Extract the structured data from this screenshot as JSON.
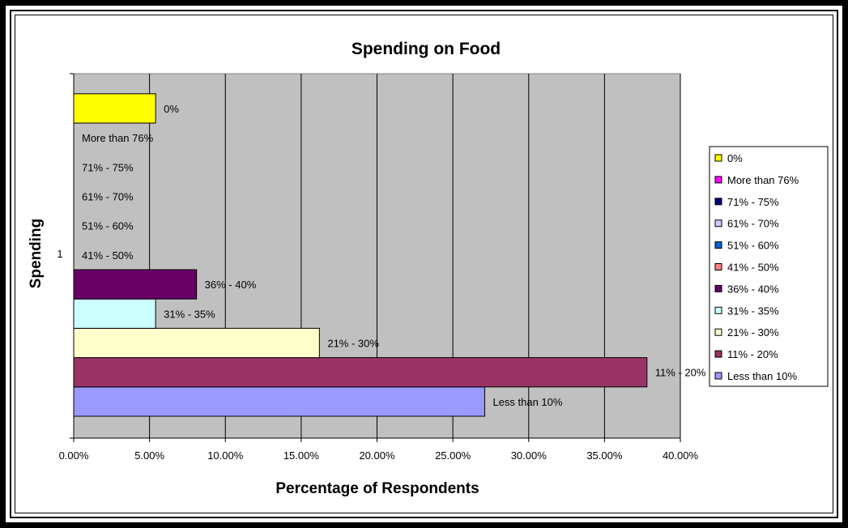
{
  "chart_data": {
    "type": "bar",
    "orientation": "horizontal",
    "title": "Spending on Food",
    "xlabel": "Percentage of Respondents",
    "ylabel": "Spending",
    "category_labels": [
      "1"
    ],
    "xlim": [
      0,
      0.4
    ],
    "x_ticks": [
      "0.00%",
      "5.00%",
      "10.00%",
      "15.00%",
      "20.00%",
      "25.00%",
      "30.00%",
      "35.00%",
      "40.00%"
    ],
    "grid": "vertical",
    "legend_position": "right",
    "plot_background": "#c0c0c0",
    "series": [
      {
        "name": "Less than 10%",
        "value": 0.271,
        "color": "#9999ff"
      },
      {
        "name": "11% - 20%",
        "value": 0.378,
        "color": "#993366"
      },
      {
        "name": "21% - 30%",
        "value": 0.162,
        "color": "#ffffcc"
      },
      {
        "name": "31% - 35%",
        "value": 0.054,
        "color": "#ccffff"
      },
      {
        "name": "36% - 40%",
        "value": 0.081,
        "color": "#660066"
      },
      {
        "name": "41% - 50%",
        "value": 0,
        "color": "#ff8080"
      },
      {
        "name": "51% - 60%",
        "value": 0,
        "color": "#0066cc"
      },
      {
        "name": "61% - 70%",
        "value": 0,
        "color": "#ccccff"
      },
      {
        "name": "71% - 75%",
        "value": 0,
        "color": "#000080"
      },
      {
        "name": "More than 76%",
        "value": 0,
        "color": "#ff00ff"
      },
      {
        "name": "0%",
        "value": 0.054,
        "color": "#ffff00"
      }
    ]
  }
}
